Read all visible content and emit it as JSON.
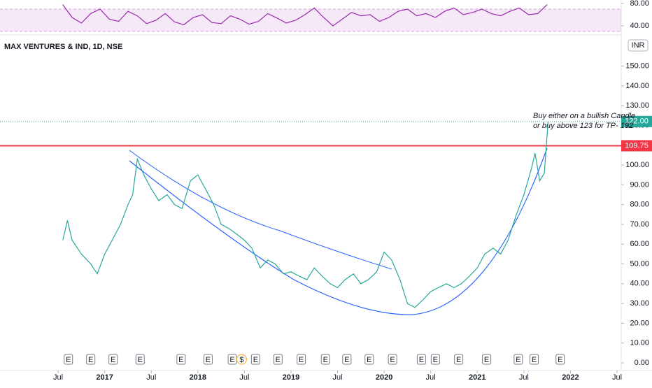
{
  "chart_data": [
    {
      "type": "line",
      "title": "MAX VENTURES & IND, 1D, NSE",
      "currency": "INR",
      "color": "#26a69a",
      "x": [
        2016.55,
        2016.6,
        2016.65,
        2016.75,
        2016.85,
        2016.92,
        2017.0,
        2017.08,
        2017.17,
        2017.25,
        2017.3,
        2017.35,
        2017.42,
        2017.5,
        2017.58,
        2017.67,
        2017.75,
        2017.83,
        2017.92,
        2018.0,
        2018.08,
        2018.17,
        2018.25,
        2018.33,
        2018.42,
        2018.5,
        2018.58,
        2018.67,
        2018.75,
        2018.83,
        2018.92,
        2019.0,
        2019.08,
        2019.17,
        2019.25,
        2019.33,
        2019.42,
        2019.5,
        2019.58,
        2019.67,
        2019.75,
        2019.83,
        2019.92,
        2020.0,
        2020.08,
        2020.17,
        2020.25,
        2020.33,
        2020.42,
        2020.5,
        2020.58,
        2020.67,
        2020.75,
        2020.83,
        2020.92,
        2021.0,
        2021.08,
        2021.17,
        2021.25,
        2021.33,
        2021.42,
        2021.5,
        2021.58,
        2021.62,
        2021.67,
        2021.72,
        2021.76
      ],
      "values": [
        62,
        72,
        62,
        55,
        50,
        45,
        55,
        62,
        70,
        80,
        85,
        103,
        95,
        88,
        82,
        85,
        80,
        78,
        92,
        95,
        88,
        80,
        70,
        68,
        65,
        62,
        58,
        48,
        52,
        50,
        45,
        46,
        44,
        42,
        48,
        44,
        40,
        38,
        42,
        45,
        40,
        42,
        46,
        56,
        52,
        42,
        30,
        28,
        32,
        36,
        38,
        40,
        38,
        40,
        44,
        48,
        55,
        58,
        55,
        62,
        75,
        85,
        98,
        106,
        92,
        96,
        122
      ],
      "xlim": [
        2015.876,
        2022.545
      ],
      "xticks": [
        {
          "value": 2016.5,
          "label": "Jul"
        },
        2017,
        {
          "value": 2017.5,
          "label": "Jul"
        },
        2018,
        {
          "value": 2018.5,
          "label": "Jul"
        },
        2019,
        {
          "value": 2019.5,
          "label": "Jul"
        },
        2020,
        {
          "value": 2020.5,
          "label": "Jul"
        },
        2021,
        {
          "value": 2021.5,
          "label": "Jul"
        },
        2022,
        {
          "value": 2022.5,
          "label": "Jul"
        }
      ],
      "ylim": [
        -3.9,
        164
      ],
      "yticks": [
        {
          "value": 0,
          "label": "0.00"
        },
        {
          "value": 10,
          "label": "10.00"
        },
        {
          "value": 20,
          "label": "20.00"
        },
        {
          "value": 30,
          "label": "30.00"
        },
        {
          "value": 40,
          "label": "40.00"
        },
        {
          "value": 50,
          "label": "50.00"
        },
        {
          "value": 60,
          "label": "60.00"
        },
        {
          "value": 70,
          "label": "70.00"
        },
        {
          "value": 80,
          "label": "80.00"
        },
        {
          "value": 90,
          "label": "90.00"
        },
        {
          "value": 100,
          "label": "100.00"
        },
        {
          "value": 110,
          "label": "110.00"
        },
        {
          "value": 120,
          "label": "120.00"
        },
        {
          "value": 130,
          "label": "130.00"
        },
        {
          "value": 140,
          "label": "140.00"
        },
        {
          "value": 150,
          "label": "150.00"
        }
      ],
      "price_lines": [
        {
          "value": 122,
          "label": "122.00",
          "color": "#26a69a"
        },
        {
          "value": 109.75,
          "label": "109.75",
          "color": "#f23645"
        }
      ],
      "annotations": [
        "Buy either on a bullish Candle",
        "or buy above 123 for TP- 192"
      ],
      "events": [
        {
          "x": 2016.61,
          "label": "E"
        },
        {
          "x": 2016.85,
          "label": "E"
        },
        {
          "x": 2017.09,
          "label": "E"
        },
        {
          "x": 2017.38,
          "label": "E"
        },
        {
          "x": 2017.82,
          "label": "E"
        },
        {
          "x": 2018.11,
          "label": "E"
        },
        {
          "x": 2018.37,
          "label": "E"
        },
        {
          "x": 2018.47,
          "label": "$"
        },
        {
          "x": 2018.62,
          "label": "E"
        },
        {
          "x": 2018.86,
          "label": "E"
        },
        {
          "x": 2019.11,
          "label": "E"
        },
        {
          "x": 2019.37,
          "label": "E"
        },
        {
          "x": 2019.6,
          "label": "E"
        },
        {
          "x": 2019.84,
          "label": "E"
        },
        {
          "x": 2020.09,
          "label": "E"
        },
        {
          "x": 2020.4,
          "label": "E"
        },
        {
          "x": 2020.55,
          "label": "E"
        },
        {
          "x": 2020.8,
          "label": "E"
        },
        {
          "x": 2021.1,
          "label": "E"
        },
        {
          "x": 2021.44,
          "label": "E"
        },
        {
          "x": 2021.61,
          "label": "E"
        },
        {
          "x": 2021.89,
          "label": "E"
        }
      ]
    },
    {
      "type": "line",
      "color": "#9c27b0",
      "x": [
        2016.55,
        2016.65,
        2016.75,
        2016.85,
        2016.95,
        2017.05,
        2017.15,
        2017.25,
        2017.35,
        2017.45,
        2017.55,
        2017.65,
        2017.75,
        2017.85,
        2017.95,
        2018.05,
        2018.15,
        2018.25,
        2018.35,
        2018.45,
        2018.55,
        2018.65,
        2018.75,
        2018.85,
        2018.95,
        2019.05,
        2019.15,
        2019.25,
        2019.35,
        2019.45,
        2019.55,
        2019.65,
        2019.75,
        2019.85,
        2019.95,
        2020.05,
        2020.15,
        2020.25,
        2020.35,
        2020.45,
        2020.55,
        2020.65,
        2020.75,
        2020.85,
        2020.95,
        2021.05,
        2021.15,
        2021.25,
        2021.35,
        2021.45,
        2021.55,
        2021.65,
        2021.75
      ],
      "values": [
        78,
        55,
        45,
        62,
        70,
        52,
        48,
        66,
        58,
        44,
        50,
        62,
        47,
        42,
        55,
        60,
        46,
        44,
        58,
        52,
        43,
        48,
        62,
        54,
        45,
        50,
        60,
        72,
        55,
        40,
        52,
        64,
        58,
        60,
        48,
        55,
        66,
        70,
        58,
        62,
        55,
        66,
        72,
        60,
        64,
        70,
        62,
        58,
        66,
        72,
        60,
        62,
        78
      ],
      "xlim": [
        2015.876,
        2022.545
      ],
      "ylim": [
        26.25,
        86.25
      ],
      "yticks": [
        {
          "value": 80,
          "label": "80.00"
        },
        {
          "value": 40,
          "label": "40.00"
        }
      ],
      "band": [
        30,
        70
      ]
    }
  ]
}
